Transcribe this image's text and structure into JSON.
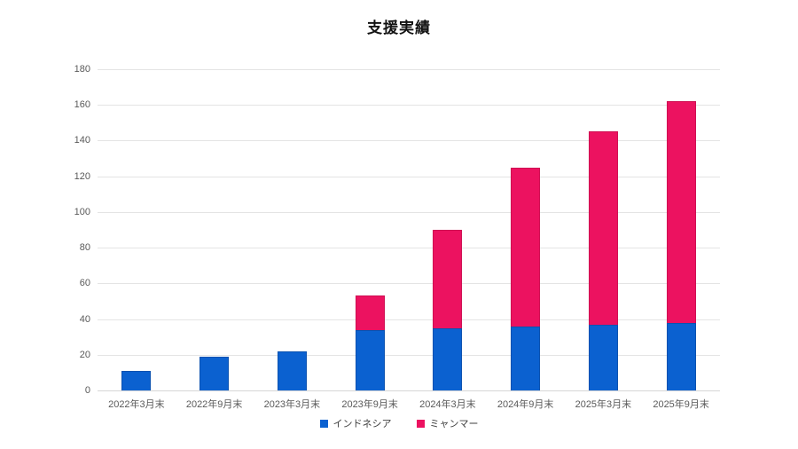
{
  "title": "支援実績",
  "chart_data": {
    "type": "bar",
    "stacked": true,
    "title": "支援実績",
    "categories": [
      "2022年3月末",
      "2022年9月末",
      "2023年3月末",
      "2023年9月末",
      "2024年3月末",
      "2024年9月末",
      "2025年3月末",
      "2025年9月末"
    ],
    "series": [
      {
        "name": "インドネシア",
        "color": "#0b61d0",
        "border_color": "#0a51b0",
        "values": [
          11,
          19,
          22,
          34,
          35,
          36,
          37,
          38
        ]
      },
      {
        "name": "ミャンマー",
        "color": "#ec1260",
        "border_color": "#cf0e52",
        "values": [
          0,
          0,
          0,
          19,
          55,
          89,
          108,
          124
        ]
      }
    ],
    "totals": [
      11,
      19,
      22,
      53,
      90,
      125,
      145,
      162
    ],
    "xlabel": "",
    "ylabel": "",
    "ylim": [
      0,
      180
    ],
    "ytick_step": 20,
    "yticks": [
      0,
      20,
      40,
      60,
      80,
      100,
      120,
      140,
      160,
      180
    ],
    "grid": true,
    "legend_position": "bottom"
  },
  "colors": {
    "background": "#ffffff",
    "gridline": "#e4e4e4",
    "axis_line": "#d6d6d6",
    "tick_text": "#595959",
    "legend_text": "#3f3f3f",
    "title_text": "#121212"
  }
}
